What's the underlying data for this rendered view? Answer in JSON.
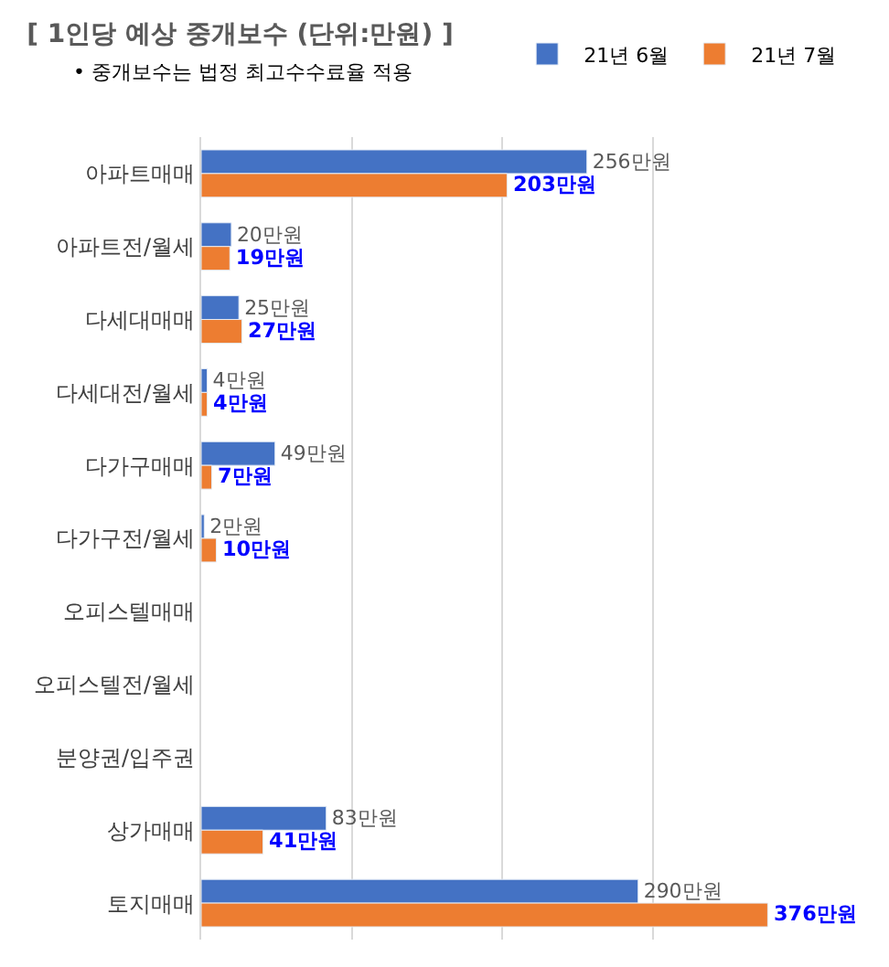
{
  "chart_data": {
    "type": "bar",
    "orientation": "horizontal",
    "title": "[ 1인당 예상 중개보수 (단위:만원) ]",
    "annotations": [
      "• 중개보수는 법정 최고수수료율 적용"
    ],
    "categories": [
      "아파트매매",
      "아파트전/월세",
      "다세대매매",
      "다세대전/월세",
      "다가구매매",
      "다가구전/월세",
      "오피스텔매매",
      "오피스텔전/월세",
      "분양권/입주권",
      "상가매매",
      "토지매매"
    ],
    "series": [
      {
        "name": "21년 6월",
        "color": "#4472c4",
        "values": [
          256,
          20,
          25,
          4,
          49,
          2,
          null,
          null,
          null,
          83,
          290
        ],
        "value_labels": [
          "256만원",
          "20만원",
          "25만원",
          "4만원",
          "49만원",
          "2만원",
          null,
          null,
          null,
          "83만원",
          "290만원"
        ]
      },
      {
        "name": "21년 7월",
        "color": "#ed7d31",
        "values": [
          203,
          19,
          27,
          4,
          7,
          10,
          null,
          null,
          null,
          41,
          376
        ],
        "value_labels": [
          "203만원",
          "19만원",
          "27만원",
          "4만원",
          "7만원",
          "10만원",
          null,
          null,
          null,
          "41만원",
          "376만원"
        ]
      }
    ],
    "tick_labels": "y",
    "grid": "x",
    "legend": "top right"
  }
}
